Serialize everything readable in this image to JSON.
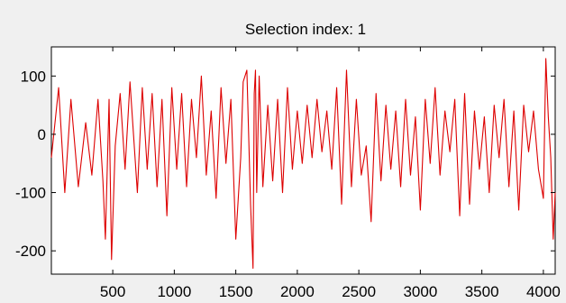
{
  "chart_data": {
    "type": "line",
    "title": "Selection index: 1",
    "xlabel": "",
    "ylabel": "",
    "xlim": [
      1,
      4096
    ],
    "ylim": [
      -240,
      150
    ],
    "xticks": [
      500,
      1000,
      1500,
      2000,
      2500,
      3000,
      3500,
      4000
    ],
    "xtick_labels": [
      "500",
      "1000",
      "1500",
      "2000",
      "2500",
      "3000",
      "3500",
      "4000"
    ],
    "yticks": [
      100,
      0,
      -100,
      -200
    ],
    "ytick_labels": [
      "100",
      "0",
      "-100",
      "-200"
    ],
    "grid": false,
    "line_color": "#dd0000",
    "series": [
      {
        "x": [
          1,
          60,
          110,
          160,
          220,
          280,
          330,
          380,
          420,
          440,
          470,
          490,
          520,
          560,
          600,
          640,
          700,
          740,
          780,
          820,
          860,
          900,
          940,
          980,
          1020,
          1060,
          1100,
          1140,
          1180,
          1220,
          1260,
          1300,
          1340,
          1380,
          1420,
          1460,
          1500,
          1540,
          1560,
          1590,
          1620,
          1640,
          1650,
          1660,
          1670,
          1690,
          1720,
          1760,
          1800,
          1840,
          1880,
          1920,
          1960,
          2000,
          2040,
          2080,
          2120,
          2160,
          2200,
          2240,
          2280,
          2320,
          2360,
          2400,
          2440,
          2480,
          2520,
          2560,
          2600,
          2640,
          2680,
          2720,
          2760,
          2800,
          2840,
          2880,
          2920,
          2960,
          3000,
          3040,
          3080,
          3120,
          3160,
          3200,
          3240,
          3280,
          3320,
          3360,
          3400,
          3440,
          3480,
          3520,
          3560,
          3600,
          3640,
          3680,
          3720,
          3760,
          3800,
          3840,
          3880,
          3920,
          3960,
          4000,
          4020,
          4040,
          4060,
          4080,
          4096
        ],
        "y": [
          -40,
          80,
          -100,
          60,
          -90,
          20,
          -70,
          60,
          -80,
          -180,
          60,
          -215,
          -20,
          70,
          -60,
          90,
          -100,
          80,
          -60,
          70,
          -90,
          60,
          -140,
          80,
          -60,
          70,
          -90,
          60,
          -40,
          100,
          -70,
          40,
          -110,
          80,
          -50,
          60,
          -180,
          -40,
          90,
          110,
          -120,
          -230,
          70,
          110,
          -100,
          100,
          -90,
          50,
          -80,
          60,
          -100,
          80,
          -60,
          40,
          -50,
          50,
          -40,
          60,
          -30,
          40,
          -60,
          80,
          -120,
          110,
          -90,
          60,
          -70,
          -20,
          -150,
          70,
          -80,
          50,
          -60,
          40,
          -90,
          60,
          -70,
          30,
          -130,
          60,
          -50,
          80,
          -70,
          40,
          -30,
          60,
          -140,
          70,
          -120,
          40,
          -60,
          30,
          -100,
          50,
          -40,
          60,
          -90,
          40,
          -130,
          50,
          -30,
          40,
          -60,
          -110,
          130,
          30,
          -40,
          -180,
          -100
        ]
      }
    ]
  }
}
